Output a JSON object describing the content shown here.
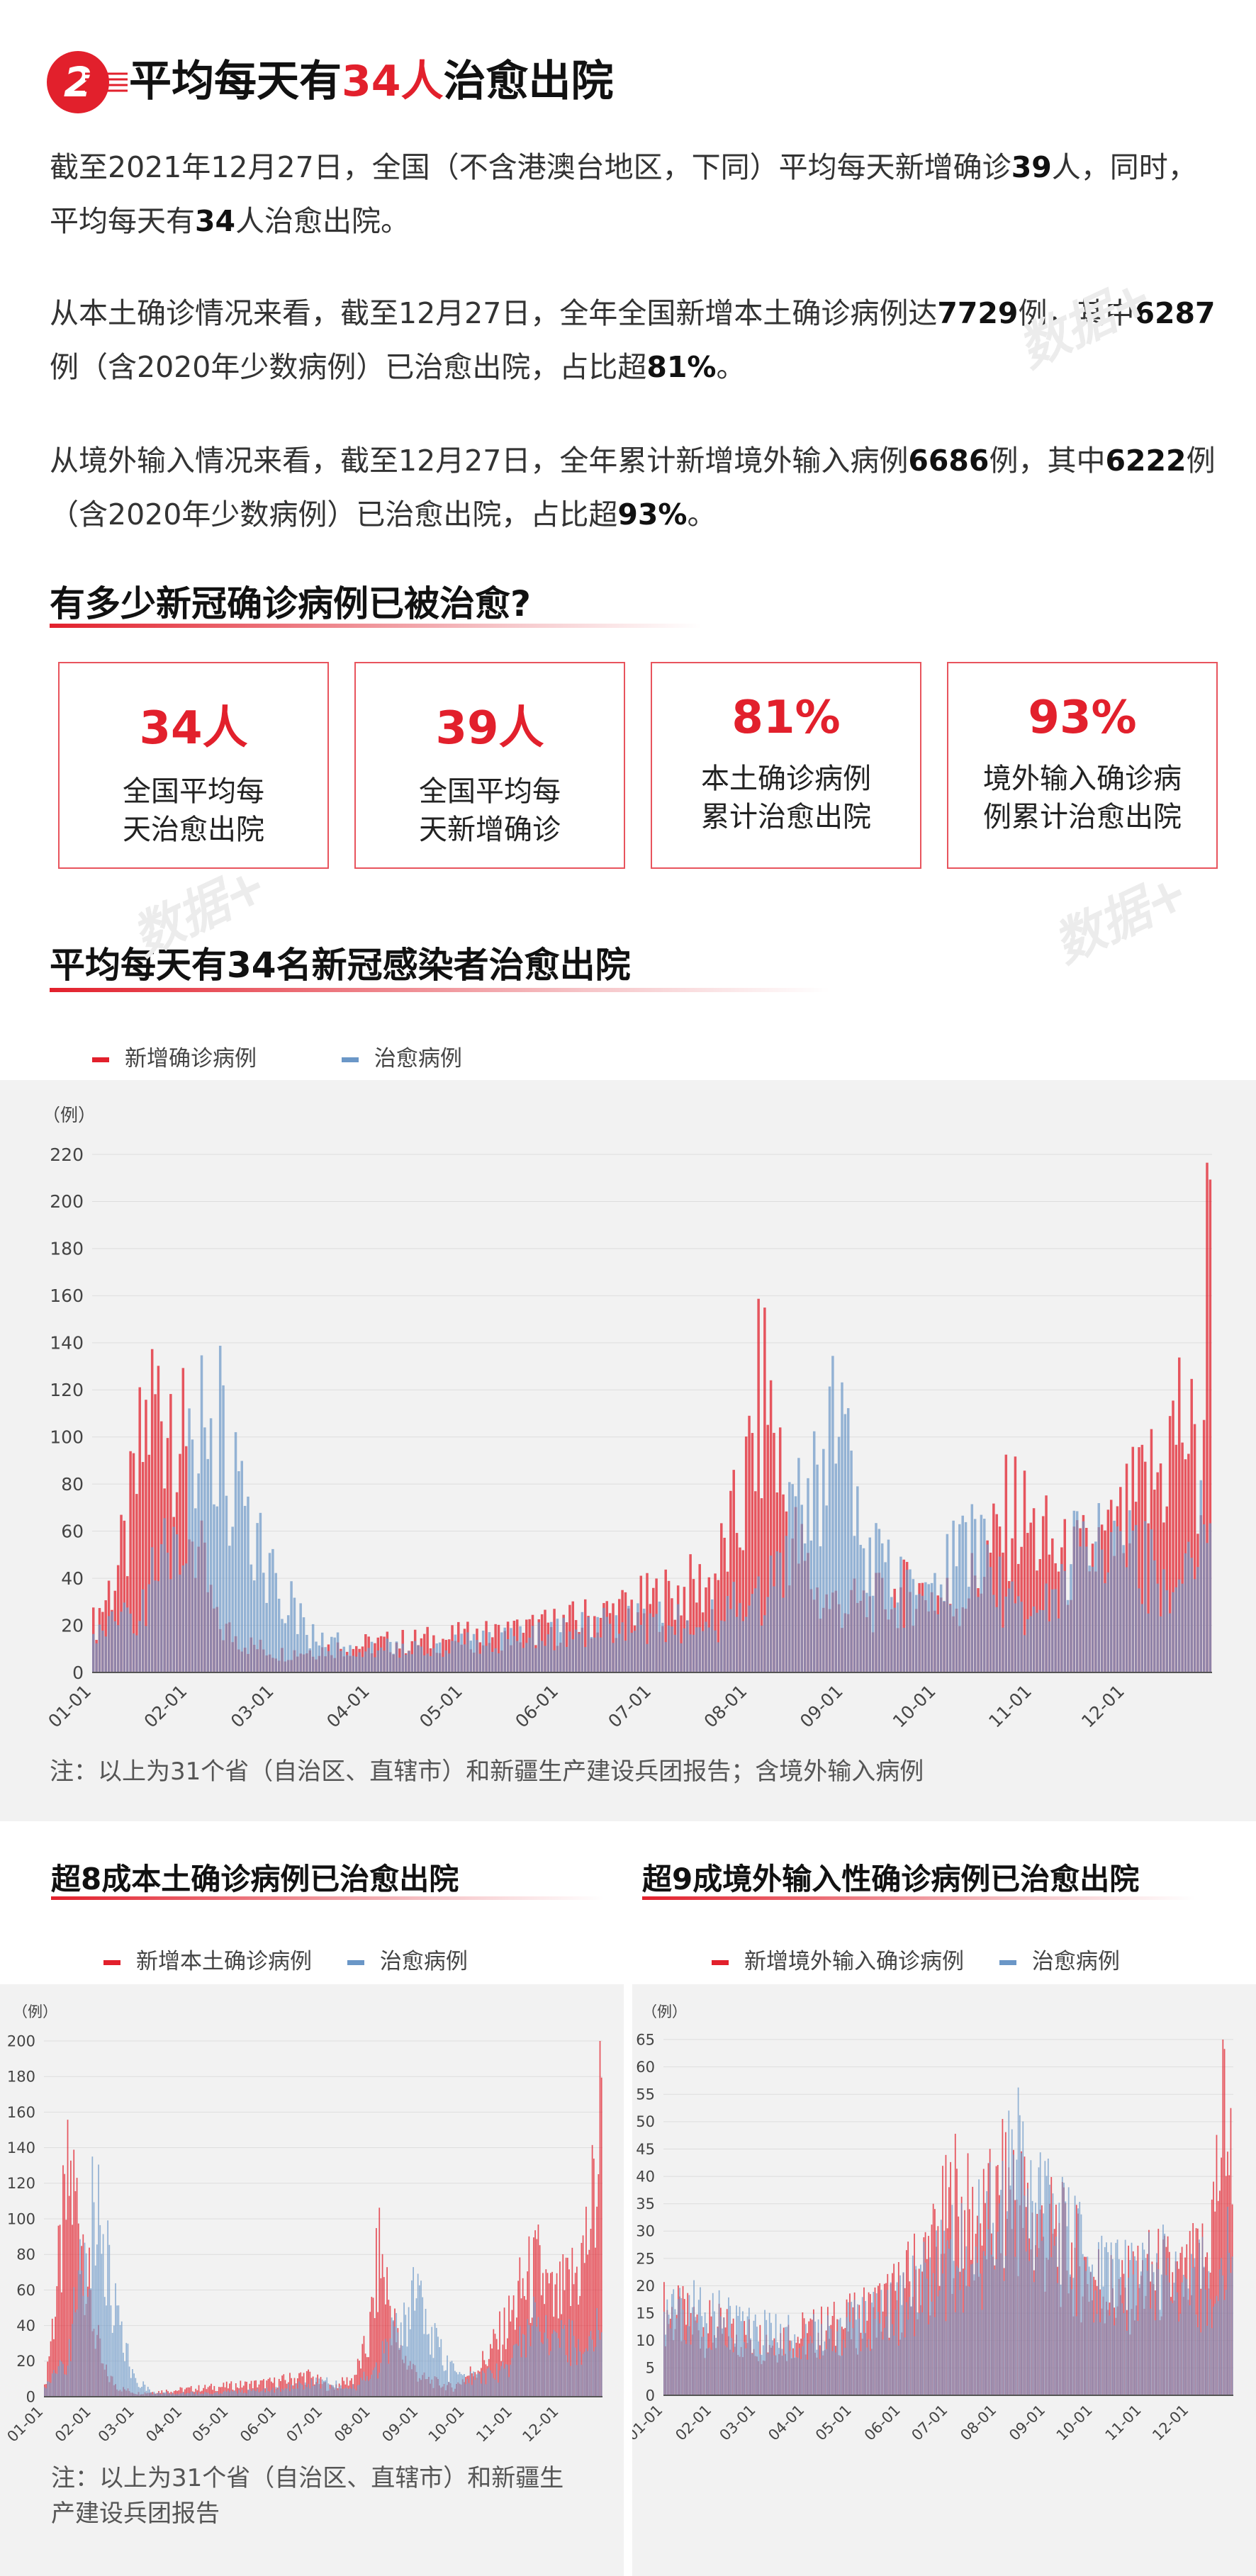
{
  "header": {
    "badge_number": "2",
    "title_before": "平均每天有",
    "title_highlight": "34人",
    "title_after": "治愈出院"
  },
  "paragraphs": [
    [
      {
        "t": "截至2021年12月27日，全国（不含港澳台地区，下同）平均每天新增确诊"
      },
      {
        "t": "39",
        "b": true
      },
      {
        "t": "人，同时，平均每天有"
      },
      {
        "t": "34",
        "b": true
      },
      {
        "t": "人治愈出院。"
      }
    ],
    [
      {
        "t": "从本土确诊情况来看，截至12月27日，全年全国新增本土确诊病例达"
      },
      {
        "t": "7729",
        "b": true
      },
      {
        "t": "例，其中"
      },
      {
        "t": "6287",
        "b": true
      },
      {
        "t": "例（含2020年少数病例）已治愈出院，占比超"
      },
      {
        "t": "81%",
        "b": true
      },
      {
        "t": "。"
      }
    ],
    [
      {
        "t": "从境外输入情况来看，截至12月27日，全年累计新增境外输入病例"
      },
      {
        "t": "6686",
        "b": true
      },
      {
        "t": "例，其中"
      },
      {
        "t": "6222",
        "b": true
      },
      {
        "t": "例（含2020年少数病例）已治愈出院，占比超"
      },
      {
        "t": "93%",
        "b": true
      },
      {
        "t": "。"
      }
    ]
  ],
  "section_cards_title": "有多少新冠确诊病例已被治愈?",
  "kpis": [
    {
      "value": "34人",
      "label_1": "全国平均每",
      "label_2": "天治愈出院"
    },
    {
      "value": "39人",
      "label_1": "全国平均每",
      "label_2": "天新增确诊"
    },
    {
      "value": "81%",
      "label_1": "本土确诊病例",
      "label_2": "累计治愈出院"
    },
    {
      "value": "93%",
      "label_1": "境外输入确诊病",
      "label_2": "例累计治愈出院"
    }
  ],
  "watermark": "数据+",
  "colors": {
    "red": "#e2202c",
    "blue": "#6b97c7",
    "kpi_border": "#e8545d",
    "panel": "#f2f2f2"
  },
  "chart_data": [
    {
      "type": "bar",
      "title": "平均每天有34名新冠感染者治愈出院",
      "unit_label": "（例）",
      "ylim": [
        0,
        220
      ],
      "yticks": [
        0,
        20,
        40,
        60,
        80,
        100,
        120,
        140,
        160,
        180,
        200,
        220
      ],
      "xticks": [
        "01-01",
        "02-01",
        "03-01",
        "04-01",
        "05-01",
        "06-01",
        "07-01",
        "08-01",
        "09-01",
        "10-01",
        "11-01",
        "12-01"
      ],
      "grid": true,
      "legend_position": "top-left",
      "series": [
        {
          "name": "新增确诊病例",
          "color": "#e2202c",
          "anchors": [
            [
              0,
              20
            ],
            [
              10,
              50
            ],
            [
              18,
              110
            ],
            [
              26,
              120
            ],
            [
              32,
              60
            ],
            [
              40,
              20
            ],
            [
              50,
              12
            ],
            [
              60,
              8
            ],
            [
              75,
              10
            ],
            [
              90,
              12
            ],
            [
              110,
              14
            ],
            [
              130,
              16
            ],
            [
              150,
              20
            ],
            [
              170,
              26
            ],
            [
              185,
              32
            ],
            [
              200,
              38
            ],
            [
              210,
              70
            ],
            [
              215,
              110
            ],
            [
              218,
              120
            ],
            [
              225,
              60
            ],
            [
              235,
              30
            ],
            [
              250,
              28
            ],
            [
              265,
              35
            ],
            [
              280,
              30
            ],
            [
              290,
              50
            ],
            [
              297,
              70
            ],
            [
              303,
              60
            ],
            [
              315,
              45
            ],
            [
              330,
              55
            ],
            [
              345,
              85
            ],
            [
              352,
              110
            ],
            [
              358,
              75
            ],
            [
              361,
              210
            ]
          ]
        },
        {
          "name": "治愈病例",
          "color": "#6b97c7",
          "anchors": [
            [
              0,
              15
            ],
            [
              15,
              25
            ],
            [
              25,
              55
            ],
            [
              32,
              95
            ],
            [
              40,
              110
            ],
            [
              50,
              60
            ],
            [
              60,
              35
            ],
            [
              70,
              15
            ],
            [
              85,
              10
            ],
            [
              110,
              10
            ],
            [
              140,
              15
            ],
            [
              170,
              20
            ],
            [
              200,
              22
            ],
            [
              220,
              35
            ],
            [
              230,
              80
            ],
            [
              240,
              110
            ],
            [
              250,
              50
            ],
            [
              265,
              30
            ],
            [
              275,
              45
            ],
            [
              285,
              55
            ],
            [
              295,
              30
            ],
            [
              305,
              20
            ],
            [
              320,
              55
            ],
            [
              330,
              60
            ],
            [
              345,
              40
            ],
            [
              355,
              55
            ],
            [
              361,
              70
            ]
          ]
        }
      ]
    },
    {
      "type": "bar",
      "title": "超8成本土确诊病例已治愈出院",
      "unit_label": "（例）",
      "ylim": [
        0,
        200
      ],
      "yticks": [
        0,
        20,
        40,
        60,
        80,
        100,
        120,
        140,
        160,
        180,
        200
      ],
      "xticks": [
        "01-01",
        "02-01",
        "03-01",
        "04-01",
        "05-01",
        "06-01",
        "07-01",
        "08-01",
        "09-01",
        "10-01",
        "11-01",
        "12-01"
      ],
      "grid": true,
      "legend_position": "top",
      "series": [
        {
          "name": "新增本土确诊病例",
          "color": "#e2202c",
          "anchors": [
            [
              0,
              5
            ],
            [
              8,
              60
            ],
            [
              16,
              120
            ],
            [
              24,
              100
            ],
            [
              30,
              50
            ],
            [
              38,
              15
            ],
            [
              48,
              5
            ],
            [
              60,
              2
            ],
            [
              90,
              4
            ],
            [
              120,
              6
            ],
            [
              150,
              8
            ],
            [
              170,
              12
            ],
            [
              185,
              5
            ],
            [
              200,
              10
            ],
            [
              210,
              30
            ],
            [
              217,
              80
            ],
            [
              222,
              60
            ],
            [
              230,
              25
            ],
            [
              245,
              10
            ],
            [
              265,
              5
            ],
            [
              285,
              20
            ],
            [
              300,
              40
            ],
            [
              310,
              60
            ],
            [
              320,
              70
            ],
            [
              330,
              50
            ],
            [
              340,
              60
            ],
            [
              350,
              80
            ],
            [
              358,
              120
            ],
            [
              361,
              180
            ]
          ]
        },
        {
          "name": "治愈病例",
          "color": "#6b97c7",
          "anchors": [
            [
              0,
              5
            ],
            [
              15,
              20
            ],
            [
              22,
              60
            ],
            [
              30,
              110
            ],
            [
              38,
              90
            ],
            [
              48,
              40
            ],
            [
              58,
              10
            ],
            [
              70,
              2
            ],
            [
              110,
              2
            ],
            [
              150,
              4
            ],
            [
              180,
              8
            ],
            [
              200,
              5
            ],
            [
              215,
              15
            ],
            [
              230,
              40
            ],
            [
              240,
              60
            ],
            [
              250,
              35
            ],
            [
              262,
              15
            ],
            [
              280,
              10
            ],
            [
              300,
              15
            ],
            [
              315,
              40
            ],
            [
              330,
              35
            ],
            [
              345,
              30
            ],
            [
              361,
              40
            ]
          ]
        }
      ]
    },
    {
      "type": "bar",
      "title": "超9成境外输入性确诊病例已治愈出院",
      "unit_label": "（例）",
      "ylim": [
        0,
        65
      ],
      "yticks": [
        0,
        5,
        10,
        15,
        20,
        25,
        30,
        35,
        40,
        45,
        50,
        55,
        60,
        65
      ],
      "xticks": [
        "01-01",
        "02-01",
        "03-01",
        "04-01",
        "05-01",
        "06-01",
        "07-01",
        "08-01",
        "09-01",
        "10-01",
        "11-01",
        "12-01"
      ],
      "grid": true,
      "legend_position": "top",
      "series": [
        {
          "name": "新增境外输入确诊病例",
          "color": "#e2202c",
          "anchors": [
            [
              0,
              15
            ],
            [
              30,
              12
            ],
            [
              60,
              10
            ],
            [
              90,
              11
            ],
            [
              120,
              13
            ],
            [
              150,
              18
            ],
            [
              175,
              28
            ],
            [
              185,
              35
            ],
            [
              195,
              30
            ],
            [
              210,
              32
            ],
            [
              220,
              38
            ],
            [
              235,
              30
            ],
            [
              250,
              28
            ],
            [
              270,
              22
            ],
            [
              290,
              18
            ],
            [
              310,
              22
            ],
            [
              330,
              20
            ],
            [
              345,
              25
            ],
            [
              352,
              40
            ],
            [
              357,
              55
            ],
            [
              361,
              35
            ]
          ]
        },
        {
          "name": "治愈病例",
          "color": "#6b97c7",
          "anchors": [
            [
              0,
              14
            ],
            [
              30,
              15
            ],
            [
              60,
              11
            ],
            [
              90,
              10
            ],
            [
              120,
              12
            ],
            [
              150,
              16
            ],
            [
              175,
              22
            ],
            [
              190,
              26
            ],
            [
              210,
              30
            ],
            [
              225,
              40
            ],
            [
              240,
              35
            ],
            [
              255,
              28
            ],
            [
              275,
              22
            ],
            [
              295,
              20
            ],
            [
              315,
              22
            ],
            [
              335,
              20
            ],
            [
              350,
              22
            ],
            [
              361,
              28
            ]
          ]
        }
      ]
    }
  ],
  "legends": {
    "main": [
      "新增确诊病例",
      "治愈病例"
    ],
    "left": [
      "新增本土确诊病例",
      "治愈病例"
    ],
    "right": [
      "新增境外输入确诊病例",
      "治愈病例"
    ]
  },
  "notes": {
    "main": "注：以上为31个省（自治区、直辖市）和新疆生产建设兵团报告；含境外输入病例",
    "left_1": "注：以上为31个省（自治区、直辖市）和新疆生",
    "left_2": "产建设兵团报告"
  }
}
